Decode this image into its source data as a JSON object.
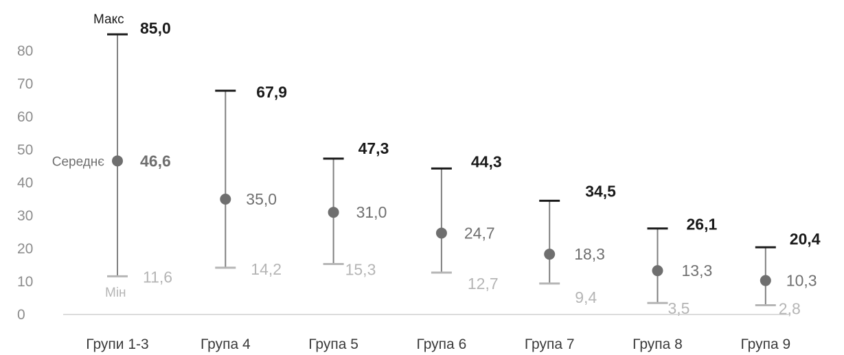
{
  "chart_data": {
    "type": "error-bar",
    "categories": [
      "Групи 1-3",
      "Група 4",
      "Група 5",
      "Група 6",
      "Група 7",
      "Група 8",
      "Група 9"
    ],
    "series": [
      {
        "name": "Макс",
        "values": [
          85.0,
          67.9,
          47.3,
          44.3,
          34.5,
          26.1,
          20.4
        ]
      },
      {
        "name": "Середнє",
        "values": [
          46.6,
          35.0,
          31.0,
          24.7,
          18.3,
          13.3,
          10.3
        ]
      },
      {
        "name": "Мін",
        "values": [
          11.6,
          14.2,
          15.3,
          12.7,
          9.4,
          3.5,
          2.8
        ]
      }
    ],
    "labels": {
      "max": [
        "85,0",
        "67,9",
        "47,3",
        "44,3",
        "34,5",
        "26,1",
        "20,4"
      ],
      "mean": [
        "46,6",
        "35,0",
        "31,0",
        "24,7",
        "18,3",
        "13,3",
        "10,3"
      ],
      "min": [
        "11,6",
        "14,2",
        "15,3",
        "12,7",
        "9,4",
        "3,5",
        "2,8"
      ]
    },
    "annotations": {
      "max": "Макс",
      "mean": "Середнє",
      "min": "Мін"
    },
    "yticks": [
      0,
      10,
      20,
      30,
      40,
      50,
      60,
      70,
      80
    ],
    "ylim": [
      0,
      85
    ],
    "grid": false,
    "colors": {
      "max": "#1a1a1a",
      "mean": "#6f6f6f",
      "min": "#b5b5b5",
      "line": "#7f7f7f",
      "axis": "#d0d0d0",
      "tick": "#8c8c8c"
    }
  }
}
